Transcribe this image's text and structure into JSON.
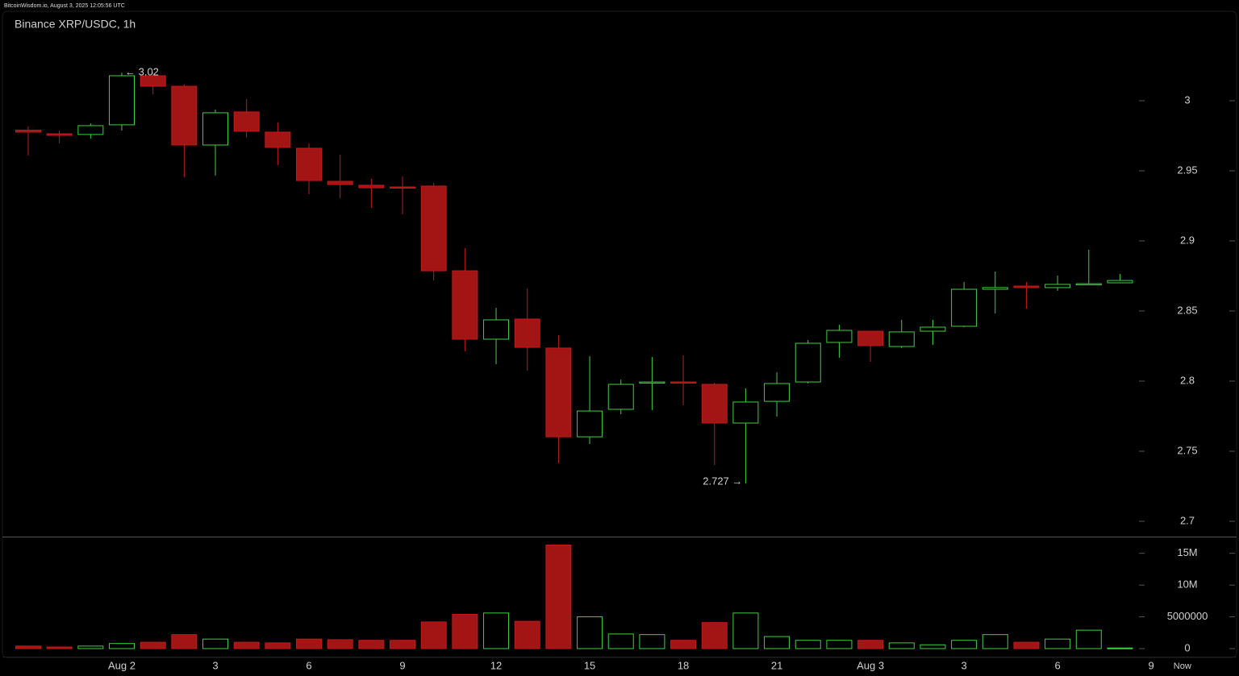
{
  "chart_data": {
    "type": "candlestick",
    "header": "BitcoinWisdom.io, August 3, 2025 12:05:56 UTC",
    "title": "Binance XRP/USDC, 1h",
    "categories": [
      null,
      null,
      null,
      "Aug 2",
      null,
      null,
      "3",
      null,
      null,
      "6",
      null,
      null,
      "9",
      null,
      null,
      "12",
      null,
      null,
      "15",
      null,
      null,
      "18",
      null,
      null,
      "21",
      null,
      null,
      "Aug 3",
      null,
      null,
      "3",
      null,
      null,
      "6",
      null,
      null,
      "9",
      "Now"
    ],
    "open": [
      2.979,
      2.9764,
      2.9759,
      2.9828,
      3.0178,
      3.0103,
      2.9684,
      2.992,
      2.9776,
      2.9661,
      2.9425,
      2.9397,
      2.9385,
      2.9391,
      2.8787,
      2.8299,
      2.8443,
      2.8236,
      2.7603,
      2.7799,
      2.7989,
      2.7994,
      2.7977,
      2.7701,
      2.7856,
      2.7994,
      2.8276,
      2.8356,
      2.8247,
      2.8356,
      2.8391,
      2.8655,
      2.8678,
      2.8667,
      2.869,
      2.8701,
      null,
      null
    ],
    "high": [
      2.9816,
      2.9787,
      2.9839,
      3.02,
      3.02,
      3.0115,
      2.9937,
      3.0011,
      2.9845,
      2.9695,
      2.9615,
      2.9443,
      2.946,
      2.9414,
      2.8948,
      2.8523,
      2.8661,
      2.8328,
      2.8178,
      2.8011,
      2.8172,
      2.8184,
      2.7989,
      2.7948,
      2.8063,
      2.8293,
      2.8402,
      2.8356,
      2.8437,
      2.8437,
      2.8707,
      2.8782,
      2.8707,
      2.8753,
      2.8937,
      2.8764,
      null,
      null
    ],
    "low": [
      2.9609,
      2.9695,
      2.973,
      2.9787,
      3.0046,
      2.9454,
      2.9466,
      2.9736,
      2.954,
      2.9333,
      2.9305,
      2.9236,
      2.919,
      2.8718,
      2.8213,
      2.8121,
      2.8075,
      2.7414,
      2.7552,
      2.7764,
      2.7793,
      2.7828,
      2.7402,
      2.727,
      2.7747,
      2.7983,
      2.8167,
      2.8138,
      2.8236,
      2.8259,
      2.8385,
      2.8483,
      2.8517,
      2.8644,
      2.869,
      2.8701,
      null,
      null
    ],
    "close": [
      2.9776,
      2.9753,
      2.9822,
      3.0178,
      3.0103,
      2.9684,
      2.9914,
      2.9782,
      2.9667,
      2.9431,
      2.9402,
      2.9379,
      2.9379,
      2.8787,
      2.8299,
      2.8437,
      2.8241,
      2.7603,
      2.7787,
      2.7977,
      2.7994,
      2.7989,
      2.7701,
      2.7851,
      2.7983,
      2.827,
      2.8362,
      2.8253,
      2.8351,
      2.8385,
      2.8655,
      2.8667,
      2.8667,
      2.869,
      2.8695,
      2.8718,
      null,
      null
    ],
    "volume": [
      400000,
      250000,
      400000,
      800000,
      1000000,
      2200000,
      1500000,
      1000000,
      900000,
      1500000,
      1400000,
      1300000,
      1300000,
      4200000,
      5400000,
      5600000,
      4300000,
      16300000,
      5000000,
      2300000,
      2200000,
      1300000,
      4100000,
      5600000,
      1900000,
      1300000,
      1300000,
      1300000,
      900000,
      600000,
      1300000,
      2200000,
      1000000,
      1500000,
      2900000,
      100000,
      null,
      null
    ],
    "up_color": "#3fd03f",
    "down_color": "#a31414",
    "ylim": [
      2.6891,
      3.0632
    ],
    "yticks": [
      3,
      2.95,
      2.9,
      2.85,
      2.8,
      2.75,
      2.7
    ],
    "volume_ylim": [
      0,
      17500000
    ],
    "volume_yticks": [
      {
        "value": 15000000,
        "label": "15M"
      },
      {
        "value": 10000000,
        "label": "10M"
      },
      5000000,
      0
    ],
    "annotations": [
      {
        "text": "← 3.02",
        "index": 3
      },
      {
        "text": "2.727 →",
        "index": 23
      }
    ]
  }
}
